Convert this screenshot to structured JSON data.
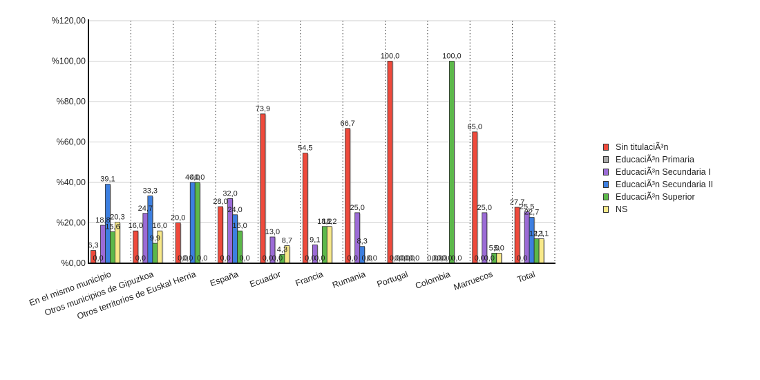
{
  "chart_data": {
    "type": "bar",
    "title": "",
    "xlabel": "",
    "ylabel": "",
    "ylim": [
      0,
      120
    ],
    "yticks": [
      0,
      20,
      40,
      60,
      80,
      100,
      120
    ],
    "ytick_labels": [
      "%0,00",
      "%20,00",
      "%40,00",
      "%60,00",
      "%80,00",
      "%100,00",
      "%120,00"
    ],
    "grid": true,
    "legend_position": "right",
    "categories": [
      "En el mismo municipio",
      "Otros municipios de Gipuzkoa",
      "Otros territorios de Euskal Herria",
      "España",
      "Ecuador",
      "Francia",
      "Rumania",
      "Portugal",
      "Colombia",
      "Marruecos",
      "Total"
    ],
    "series": [
      {
        "name": "Sin titulaciÃ³n",
        "color": "#ef4a3c",
        "values": [
          6.3,
          16.0,
          20.0,
          28.0,
          73.9,
          54.5,
          66.7,
          100.0,
          0.0,
          65.0,
          27.7
        ],
        "labels": [
          "6,3",
          "16,0",
          "20,0",
          "28,0",
          "73,9",
          "54,5",
          "66,7",
          "100,0",
          "0,0",
          "65,0",
          "27,7"
        ]
      },
      {
        "name": "EducaciÃ³n Primaria",
        "color": "#a9a9a9",
        "values": [
          0.0,
          0.0,
          0.0,
          0.0,
          0.0,
          0.0,
          0.0,
          0.0,
          0.0,
          0.0,
          0.0
        ],
        "labels": [
          "0,0",
          "0,0",
          "0,0",
          "0,0",
          "0,0",
          "0,0",
          "0,0",
          "0,0",
          "0,0",
          "0,0",
          "0,0"
        ]
      },
      {
        "name": "EducaciÃ³n Secundaria I",
        "color": "#9b6bd6",
        "values": [
          18.8,
          24.7,
          0.0,
          32.0,
          13.0,
          9.1,
          25.0,
          0.0,
          0.0,
          25.0,
          25.5
        ],
        "labels": [
          "18,8",
          "24,7",
          "0,0",
          "32,0",
          "13,0",
          "9,1",
          "25,0",
          "0,0",
          "0,0",
          "25,0",
          "25,5"
        ]
      },
      {
        "name": "EducaciÃ³n Secundaria II",
        "color": "#3d7fe0",
        "values": [
          39.1,
          33.3,
          40.0,
          24.0,
          0.0,
          0.0,
          8.3,
          0.0,
          0.0,
          0.0,
          22.7
        ],
        "labels": [
          "39,1",
          "33,3",
          "40,0",
          "24,0",
          "0,0",
          "0,0",
          "8,3",
          "0,0",
          "0,0",
          "0,0",
          "22,7"
        ]
      },
      {
        "name": "EducaciÃ³n Superior",
        "color": "#5cb84a",
        "values": [
          15.6,
          9.9,
          40.0,
          16.0,
          4.3,
          18.2,
          0.0,
          0.0,
          100.0,
          5.0,
          12.1
        ],
        "labels": [
          "15,6",
          "9,9",
          "40,0",
          "16,0",
          "4,3",
          "18,2",
          "0,0",
          "0,0",
          "100,0",
          "5,0",
          "12,1"
        ]
      },
      {
        "name": "NS",
        "color": "#f8e98a",
        "values": [
          20.3,
          16.0,
          0.0,
          0.0,
          8.7,
          18.2,
          0.0,
          0.0,
          0.0,
          5.0,
          12.1
        ],
        "labels": [
          "20,3",
          "16,0",
          "0,0",
          "0,0",
          "8,7",
          "18,2",
          "0,0",
          "0,0",
          "0,0",
          "5,0",
          "12,1"
        ]
      }
    ]
  }
}
